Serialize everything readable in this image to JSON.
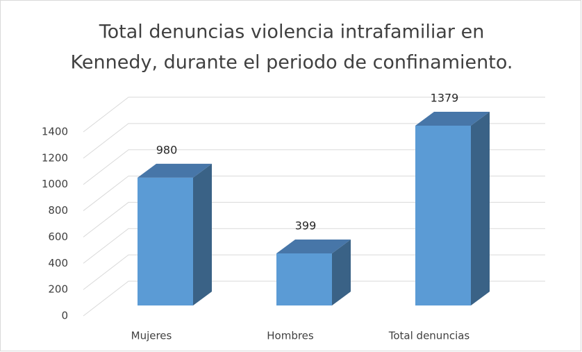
{
  "chart_data": {
    "type": "bar3d",
    "title": [
      "Total denuncias violencia intrafamiliar en",
      "Kennedy, durante el periodo de confinamiento."
    ],
    "categories": [
      "Mujeres",
      "Hombres",
      "Total denuncias"
    ],
    "values": [
      980,
      399,
      1379
    ],
    "color": "#5b9bd5",
    "ylim": [
      0,
      1400
    ],
    "yticks": [
      0,
      200,
      400,
      600,
      800,
      1000,
      1200,
      1400
    ],
    "grid": true
  }
}
